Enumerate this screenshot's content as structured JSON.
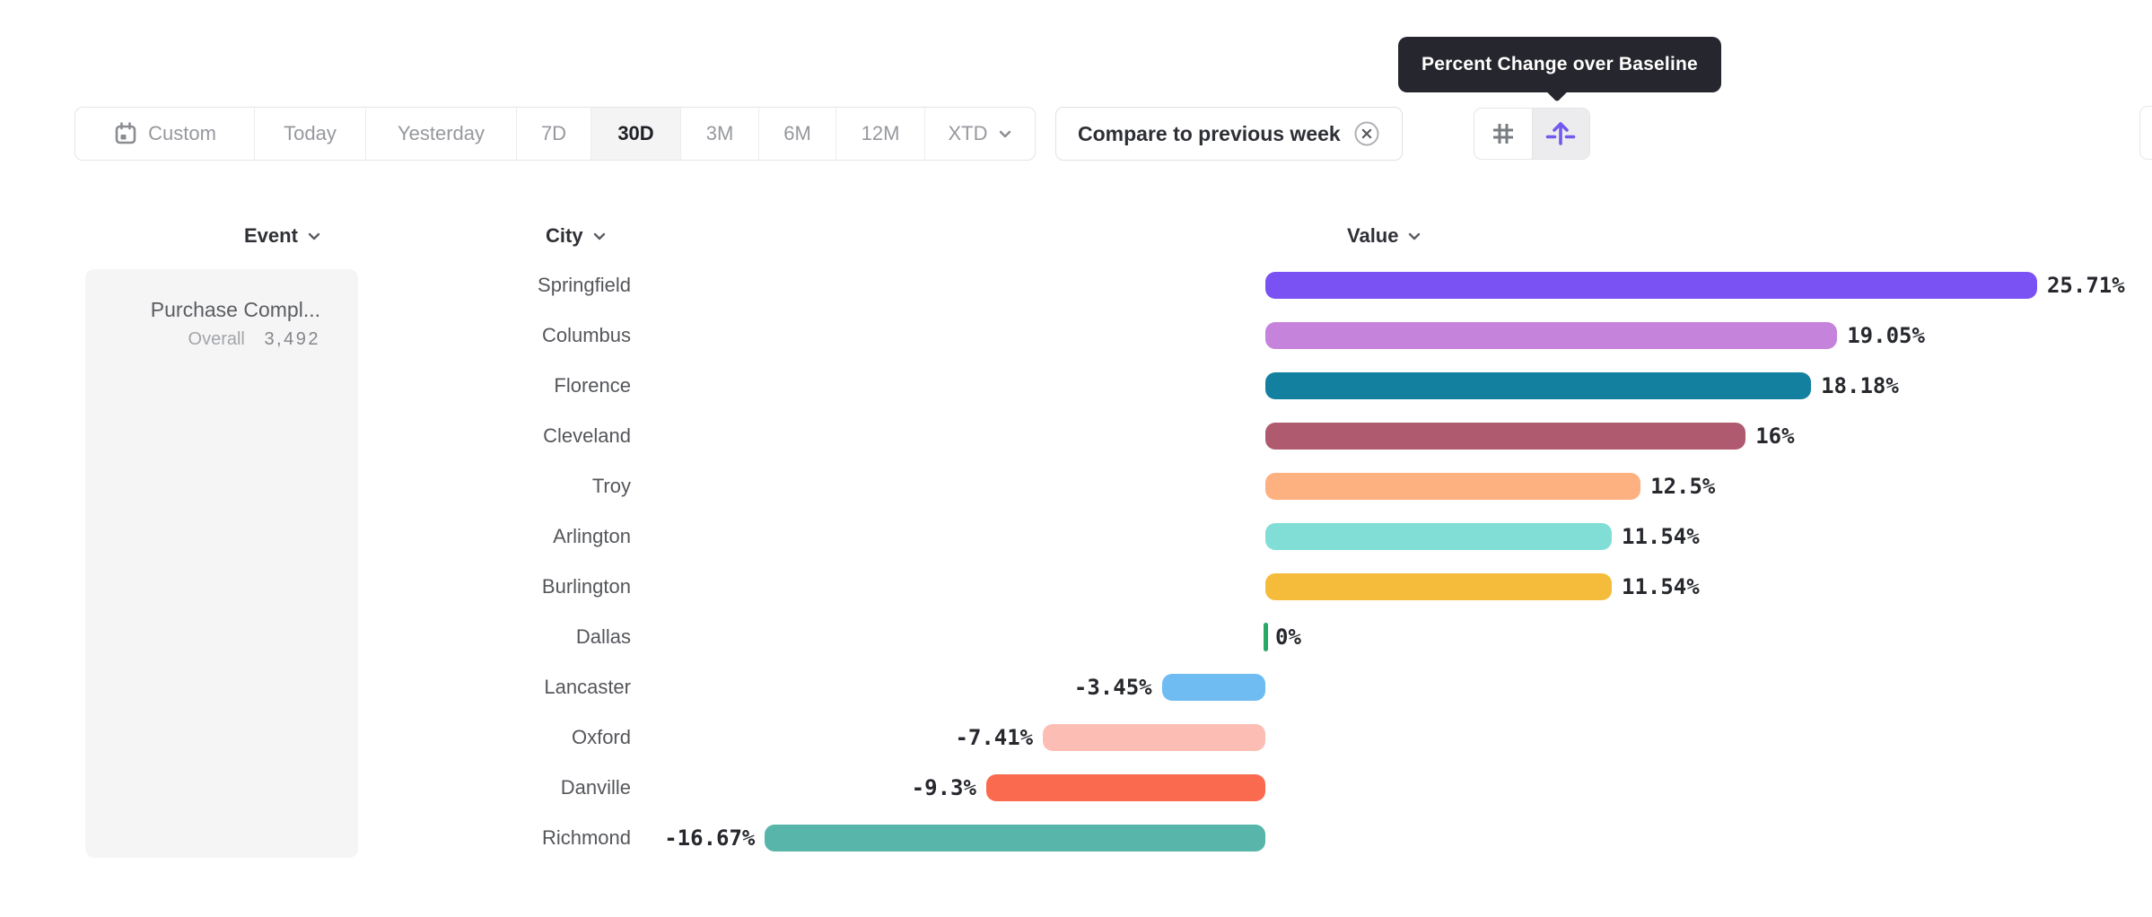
{
  "tooltip": {
    "text": "Percent Change over Baseline",
    "background": "#26262E"
  },
  "date_range_picker": {
    "options": [
      {
        "id": "custom",
        "label": "Custom",
        "has_calendar_icon": true,
        "selected": false
      },
      {
        "id": "today",
        "label": "Today",
        "selected": false
      },
      {
        "id": "yesterday",
        "label": "Yesterday",
        "selected": false
      },
      {
        "id": "7d",
        "label": "7D",
        "selected": false
      },
      {
        "id": "30d",
        "label": "30D",
        "selected": true
      },
      {
        "id": "3m",
        "label": "3M",
        "selected": false
      },
      {
        "id": "6m",
        "label": "6M",
        "selected": false
      },
      {
        "id": "12m",
        "label": "12M",
        "selected": false
      },
      {
        "id": "xtd",
        "label": "XTD",
        "has_chevron": true,
        "selected": false
      }
    ]
  },
  "compare_chip": {
    "label": "Compare to previous week",
    "remove_icon": "x-circle-icon"
  },
  "view_toggle": {
    "buttons": [
      {
        "id": "absolute-numbers",
        "icon": "hash-icon",
        "active": false
      },
      {
        "id": "percent-change-over-baseline",
        "icon": "baseline-arrow-icon",
        "active": true
      }
    ],
    "accent_color": "#7159EE"
  },
  "columns": {
    "event": {
      "label": "Event"
    },
    "city": {
      "label": "City"
    },
    "value": {
      "label": "Value"
    }
  },
  "event_panel": {
    "event_name": "Purchase Compl...",
    "overall_label": "Overall",
    "overall_value": "3,492"
  },
  "chart_data": {
    "type": "bar",
    "orientation": "horizontal",
    "unit": "%",
    "baseline": 0,
    "xlim": [
      -16.67,
      25.71
    ],
    "categories": [
      "Springfield",
      "Columbus",
      "Florence",
      "Cleveland",
      "Troy",
      "Arlington",
      "Burlington",
      "Dallas",
      "Lancaster",
      "Oxford",
      "Danville",
      "Richmond"
    ],
    "values": [
      25.71,
      19.05,
      18.18,
      16,
      12.5,
      11.54,
      11.54,
      0,
      -3.45,
      -7.41,
      -9.3,
      -16.67
    ],
    "labels": [
      "25.71%",
      "19.05%",
      "18.18%",
      "16%",
      "12.5%",
      "11.54%",
      "11.54%",
      "0%",
      "-3.45%",
      "-7.41%",
      "-9.3%",
      "-16.67%"
    ],
    "colors": [
      "#7A52F4",
      "#C683DC",
      "#12809E",
      "#AF5A6E",
      "#FDB080",
      "#80DED6",
      "#F5BC3C",
      "#29A866",
      "#6FBCF2",
      "#FCBDB4",
      "#FA6A4F",
      "#57B5A9"
    ]
  }
}
